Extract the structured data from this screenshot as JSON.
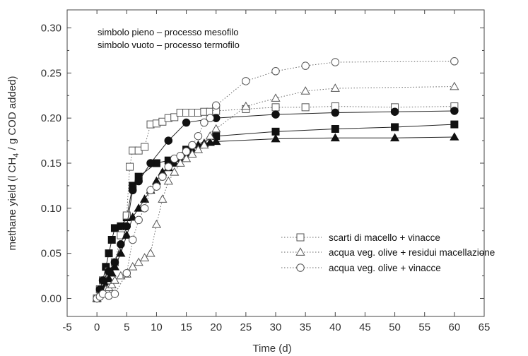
{
  "chart_data": {
    "type": "scatter",
    "title": "",
    "xlabel": "Time (d)",
    "ylabel_parts": {
      "before": "methane yield (l CH",
      "sub": "4",
      "after": " / g COD added)"
    },
    "xlim": [
      -5,
      65
    ],
    "ylim": [
      -0.02,
      0.32
    ],
    "xticks": [
      "-5",
      "0",
      "5",
      "10",
      "15",
      "20",
      "25",
      "30",
      "35",
      "40",
      "45",
      "50",
      "55",
      "60",
      "65"
    ],
    "yticks": [
      "0.00",
      "0.05",
      "0.10",
      "0.15",
      "0.20",
      "0.25",
      "0.30"
    ],
    "notes": [
      "simbolo pieno – processo mesofilo",
      "simbolo vuoto – processo termofilo"
    ],
    "legend": [
      {
        "marker": "square",
        "label": "scarti di macello + vinacce"
      },
      {
        "marker": "triangle",
        "label": "acqua veg. olive + residui macellazione"
      },
      {
        "marker": "circle",
        "label": "acqua veg. olive + vinacce"
      }
    ],
    "series": [
      {
        "marker": "square",
        "fill": "filled",
        "line": "solid",
        "x": [
          0,
          0.5,
          1,
          1.5,
          2,
          2.5,
          3,
          4,
          5,
          6,
          7,
          10,
          12,
          15,
          20,
          30,
          40,
          50,
          60
        ],
        "y": [
          0.0,
          0.01,
          0.02,
          0.035,
          0.05,
          0.065,
          0.078,
          0.08,
          0.09,
          0.125,
          0.135,
          0.15,
          0.153,
          0.165,
          0.18,
          0.185,
          0.188,
          0.19,
          0.193
        ]
      },
      {
        "marker": "square",
        "fill": "open",
        "line": "dotted",
        "x": [
          0,
          0.5,
          1,
          2,
          3,
          4,
          5,
          5.5,
          6,
          7,
          8,
          9,
          10,
          11,
          12,
          13,
          14,
          15,
          16,
          17,
          18,
          19,
          20,
          25,
          30,
          35,
          40,
          50,
          60
        ],
        "y": [
          0.0,
          0.01,
          0.02,
          0.03,
          0.04,
          0.07,
          0.092,
          0.146,
          0.164,
          0.164,
          0.168,
          0.193,
          0.194,
          0.196,
          0.2,
          0.201,
          0.206,
          0.206,
          0.206,
          0.206,
          0.207,
          0.207,
          0.208,
          0.21,
          0.212,
          0.212,
          0.213,
          0.212,
          0.213
        ]
      },
      {
        "marker": "triangle",
        "fill": "filled",
        "line": "solid",
        "x": [
          0,
          0.5,
          1,
          1.5,
          2,
          2.5,
          3,
          4,
          5,
          6,
          7,
          8,
          9,
          10,
          11,
          12,
          13,
          14,
          15,
          16,
          17,
          18,
          19,
          20,
          30,
          40,
          50,
          60
        ],
        "y": [
          0.0,
          0.005,
          0.01,
          0.015,
          0.022,
          0.028,
          0.035,
          0.05,
          0.07,
          0.09,
          0.1,
          0.11,
          0.12,
          0.13,
          0.14,
          0.145,
          0.15,
          0.155,
          0.16,
          0.165,
          0.17,
          0.172,
          0.173,
          0.174,
          0.177,
          0.178,
          0.178,
          0.179
        ]
      },
      {
        "marker": "triangle",
        "fill": "open",
        "line": "dotted",
        "x": [
          0,
          0.5,
          1,
          1.5,
          2,
          2.5,
          3,
          4,
          5,
          6,
          7,
          8,
          9,
          10,
          11,
          12,
          13,
          14,
          15,
          16,
          17,
          18,
          19,
          20,
          25,
          30,
          35,
          40,
          60
        ],
        "y": [
          0.0,
          0.005,
          0.008,
          0.01,
          0.012,
          0.015,
          0.02,
          0.025,
          0.027,
          0.035,
          0.04,
          0.045,
          0.05,
          0.082,
          0.11,
          0.13,
          0.14,
          0.15,
          0.155,
          0.16,
          0.165,
          0.17,
          0.18,
          0.188,
          0.213,
          0.222,
          0.23,
          0.233,
          0.235
        ]
      },
      {
        "marker": "circle",
        "fill": "filled",
        "line": "solid",
        "x": [
          0,
          0.5,
          1,
          2,
          3,
          4,
          5,
          6,
          7,
          9,
          12,
          15,
          20,
          30,
          40,
          50,
          60
        ],
        "y": [
          0.0,
          0.01,
          0.02,
          0.03,
          0.04,
          0.06,
          0.08,
          0.12,
          0.13,
          0.15,
          0.175,
          0.195,
          0.2,
          0.204,
          0.206,
          0.207,
          0.208
        ]
      },
      {
        "marker": "circle",
        "fill": "open",
        "line": "dotted",
        "x": [
          0,
          0.5,
          1,
          2,
          3,
          5,
          6,
          7,
          8,
          9,
          10,
          11,
          12,
          13,
          14,
          15,
          16,
          17,
          18,
          19,
          20,
          25,
          30,
          35,
          40,
          60
        ],
        "y": [
          0.0,
          0.002,
          0.005,
          0.003,
          0.005,
          0.028,
          0.065,
          0.087,
          0.1,
          0.12,
          0.124,
          0.135,
          0.146,
          0.155,
          0.158,
          0.163,
          0.17,
          0.18,
          0.195,
          0.2,
          0.214,
          0.241,
          0.252,
          0.258,
          0.262,
          0.263
        ]
      }
    ]
  }
}
